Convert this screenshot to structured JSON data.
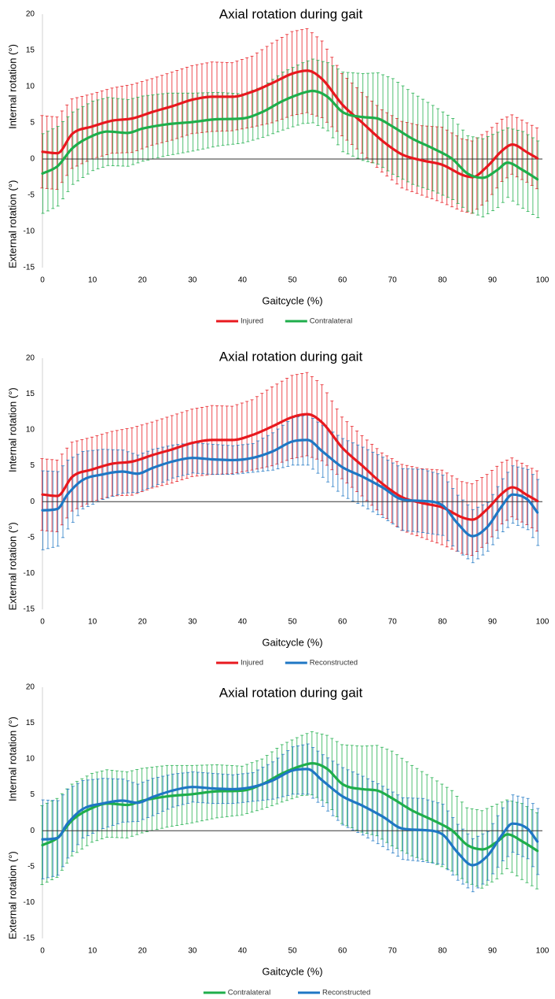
{
  "chart_data": [
    {
      "type": "line",
      "title": "Axial rotation during gait",
      "xlabel": "Gaitcycle (%)",
      "ylabel_upper": "Internal rotation (°)",
      "ylabel_lower": "External rotation (°)",
      "xlim": [
        0,
        100
      ],
      "ylim": [
        -15,
        20
      ],
      "xticks": [
        "0",
        "10",
        "20",
        "30",
        "40",
        "50",
        "60",
        "70",
        "80",
        "90",
        "100"
      ],
      "yticks": [
        "-15",
        "-10",
        "-5",
        "0",
        "5",
        "10",
        "15",
        "20"
      ],
      "zero_line": true,
      "legend_position": "bottom-center",
      "series": [
        {
          "name": "Injured",
          "color": "#e8191f",
          "x": [
            0,
            3,
            6,
            10,
            14,
            18,
            22,
            26,
            30,
            34,
            38,
            42,
            46,
            50,
            53,
            56,
            60,
            64,
            68,
            72,
            76,
            80,
            84,
            86,
            89,
            92,
            94,
            97,
            99
          ],
          "mean": [
            1,
            0.8,
            3.5,
            4.5,
            5.3,
            5.6,
            6.5,
            7.3,
            8.2,
            8.6,
            8.6,
            9.3,
            10.5,
            11.8,
            12.2,
            11.0,
            7.5,
            5.0,
            2.5,
            0.6,
            -0.2,
            -0.8,
            -2.2,
            -2.5,
            -1.0,
            1.2,
            2.0,
            0.9,
            0.1
          ],
          "sd": [
            5.0,
            5.0,
            4.8,
            4.5,
            4.5,
            4.7,
            4.6,
            4.7,
            4.7,
            4.8,
            4.7,
            4.9,
            5.5,
            5.8,
            5.8,
            5.3,
            4.3,
            4.2,
            4.3,
            4.6,
            4.8,
            5.2,
            5.0,
            5.0,
            4.8,
            4.3,
            4.1,
            4.1,
            4.2
          ]
        },
        {
          "name": "Contralateral",
          "color": "#1fae4b",
          "x": [
            0,
            3,
            6,
            10,
            13,
            17,
            20,
            25,
            30,
            35,
            40,
            44,
            48,
            52,
            54,
            57,
            60,
            64,
            67,
            70,
            74,
            78,
            82,
            85,
            88,
            91,
            93,
            96,
            99
          ],
          "mean": [
            -2.0,
            -1.0,
            1.5,
            3.2,
            3.8,
            3.6,
            4.2,
            4.8,
            5.1,
            5.5,
            5.6,
            6.5,
            8.0,
            9.1,
            9.4,
            8.6,
            6.5,
            5.8,
            5.6,
            4.5,
            2.8,
            1.5,
            0,
            -2.0,
            -2.6,
            -1.5,
            -0.5,
            -1.5,
            -2.8
          ],
          "sd": [
            5.5,
            5.5,
            5.0,
            4.8,
            4.7,
            4.6,
            4.5,
            4.3,
            4.0,
            3.7,
            3.4,
            3.5,
            4.0,
            4.2,
            4.4,
            4.7,
            5.5,
            6.0,
            6.3,
            6.6,
            6.3,
            5.9,
            5.6,
            5.2,
            5.4,
            5.2,
            4.8,
            5.3,
            5.3
          ]
        }
      ]
    },
    {
      "type": "line",
      "title": "Axial rotation during gait",
      "xlabel": "Gaitcycle (%)",
      "ylabel_upper": "Internal rotation (°)",
      "ylabel_lower": "External rotation (°)",
      "xlim": [
        0,
        100
      ],
      "ylim": [
        -15,
        20
      ],
      "xticks": [
        "0",
        "10",
        "20",
        "30",
        "40",
        "50",
        "60",
        "70",
        "80",
        "90",
        "100"
      ],
      "yticks": [
        "-15",
        "-10",
        "-5",
        "0",
        "5",
        "10",
        "15",
        "20"
      ],
      "zero_line": true,
      "legend_position": "bottom-center",
      "series": [
        {
          "name": "Injured",
          "color": "#e8191f",
          "x": [
            0,
            3,
            6,
            10,
            14,
            18,
            22,
            26,
            30,
            34,
            38,
            42,
            46,
            50,
            53,
            56,
            60,
            64,
            68,
            72,
            76,
            80,
            84,
            86,
            89,
            92,
            94,
            97,
            99
          ],
          "mean": [
            1,
            0.8,
            3.5,
            4.5,
            5.3,
            5.6,
            6.5,
            7.3,
            8.2,
            8.6,
            8.6,
            9.3,
            10.5,
            11.8,
            12.2,
            11.0,
            7.5,
            5.0,
            2.5,
            0.6,
            -0.2,
            -0.8,
            -2.2,
            -2.5,
            -1.0,
            1.2,
            2.0,
            0.9,
            0.1
          ],
          "sd": [
            5.0,
            5.0,
            4.8,
            4.5,
            4.5,
            4.7,
            4.6,
            4.7,
            4.7,
            4.8,
            4.7,
            4.9,
            5.5,
            5.8,
            5.8,
            5.3,
            4.3,
            4.2,
            4.3,
            4.6,
            4.8,
            5.2,
            5.0,
            5.0,
            4.8,
            4.3,
            4.1,
            4.1,
            4.2
          ]
        },
        {
          "name": "Reconstructed",
          "color": "#1f77c4",
          "x": [
            0,
            3,
            5,
            8,
            12,
            16,
            19,
            22,
            26,
            30,
            34,
            38,
            42,
            46,
            50,
            53,
            56,
            60,
            64,
            68,
            72,
            76,
            80,
            83,
            86,
            89,
            92,
            94,
            97,
            99
          ],
          "mean": [
            -1.2,
            -1.0,
            1.0,
            3.0,
            3.8,
            4.2,
            3.9,
            4.7,
            5.6,
            6.1,
            5.9,
            5.8,
            6.1,
            7.0,
            8.4,
            8.6,
            7.0,
            4.8,
            3.5,
            2.0,
            0.3,
            0.1,
            -0.5,
            -3.0,
            -4.8,
            -3.5,
            -0.5,
            1.0,
            0.3,
            -1.5
          ],
          "sd": [
            5.5,
            5.2,
            4.8,
            4.0,
            3.5,
            3.0,
            2.6,
            2.6,
            2.3,
            2.1,
            2.1,
            2.0,
            2.0,
            2.6,
            3.3,
            3.5,
            3.6,
            4.0,
            4.1,
            4.2,
            4.3,
            4.4,
            4.2,
            3.9,
            3.7,
            3.4,
            3.7,
            4.0,
            4.2,
            4.6
          ]
        }
      ]
    },
    {
      "type": "line",
      "title": "Axial rotation during gait",
      "xlabel": "Gaitcycle (%)",
      "ylabel_upper": "Internal rotation (°)",
      "ylabel_lower": "External rotation (°)",
      "xlim": [
        0,
        100
      ],
      "ylim": [
        -15,
        20
      ],
      "xticks": [
        "0",
        "10",
        "20",
        "30",
        "40",
        "50",
        "60",
        "70",
        "80",
        "90",
        "100"
      ],
      "yticks": [
        "-15",
        "-10",
        "-5",
        "0",
        "5",
        "10",
        "15",
        "20"
      ],
      "zero_line": true,
      "legend_position": "bottom-center",
      "series": [
        {
          "name": "Contralateral",
          "color": "#1fae4b",
          "x": [
            0,
            3,
            6,
            10,
            13,
            17,
            20,
            25,
            30,
            35,
            40,
            44,
            48,
            52,
            54,
            57,
            60,
            64,
            67,
            70,
            74,
            78,
            82,
            85,
            88,
            91,
            93,
            96,
            99
          ],
          "mean": [
            -2.0,
            -1.0,
            1.5,
            3.2,
            3.8,
            3.6,
            4.2,
            4.8,
            5.1,
            5.5,
            5.6,
            6.5,
            8.0,
            9.1,
            9.4,
            8.6,
            6.5,
            5.8,
            5.6,
            4.5,
            2.8,
            1.5,
            0,
            -2.0,
            -2.6,
            -1.5,
            -0.5,
            -1.5,
            -2.8
          ],
          "sd": [
            5.5,
            5.5,
            5.0,
            4.8,
            4.7,
            4.6,
            4.5,
            4.3,
            4.0,
            3.7,
            3.4,
            3.5,
            4.0,
            4.2,
            4.4,
            4.7,
            5.5,
            6.0,
            6.3,
            6.6,
            6.3,
            5.9,
            5.6,
            5.2,
            5.4,
            5.2,
            4.8,
            5.3,
            5.3
          ]
        },
        {
          "name": "Reconstructed",
          "color": "#1f77c4",
          "x": [
            0,
            3,
            5,
            8,
            12,
            16,
            19,
            22,
            26,
            30,
            34,
            38,
            42,
            46,
            50,
            53,
            56,
            60,
            64,
            68,
            72,
            76,
            80,
            83,
            86,
            89,
            92,
            94,
            97,
            99
          ],
          "mean": [
            -1.2,
            -1.0,
            1.0,
            3.0,
            3.8,
            4.2,
            3.9,
            4.7,
            5.6,
            6.1,
            5.9,
            5.8,
            6.1,
            7.0,
            8.4,
            8.6,
            7.0,
            4.8,
            3.5,
            2.0,
            0.3,
            0.1,
            -0.5,
            -3.0,
            -4.8,
            -3.5,
            -0.5,
            1.0,
            0.3,
            -1.5
          ],
          "sd": [
            5.5,
            5.2,
            4.8,
            4.0,
            3.5,
            3.0,
            2.6,
            2.6,
            2.3,
            2.1,
            2.1,
            2.0,
            2.0,
            2.6,
            3.3,
            3.5,
            3.6,
            4.0,
            4.1,
            4.2,
            4.3,
            4.4,
            4.2,
            3.9,
            3.7,
            3.4,
            3.7,
            4.0,
            4.2,
            4.6
          ]
        }
      ]
    }
  ]
}
